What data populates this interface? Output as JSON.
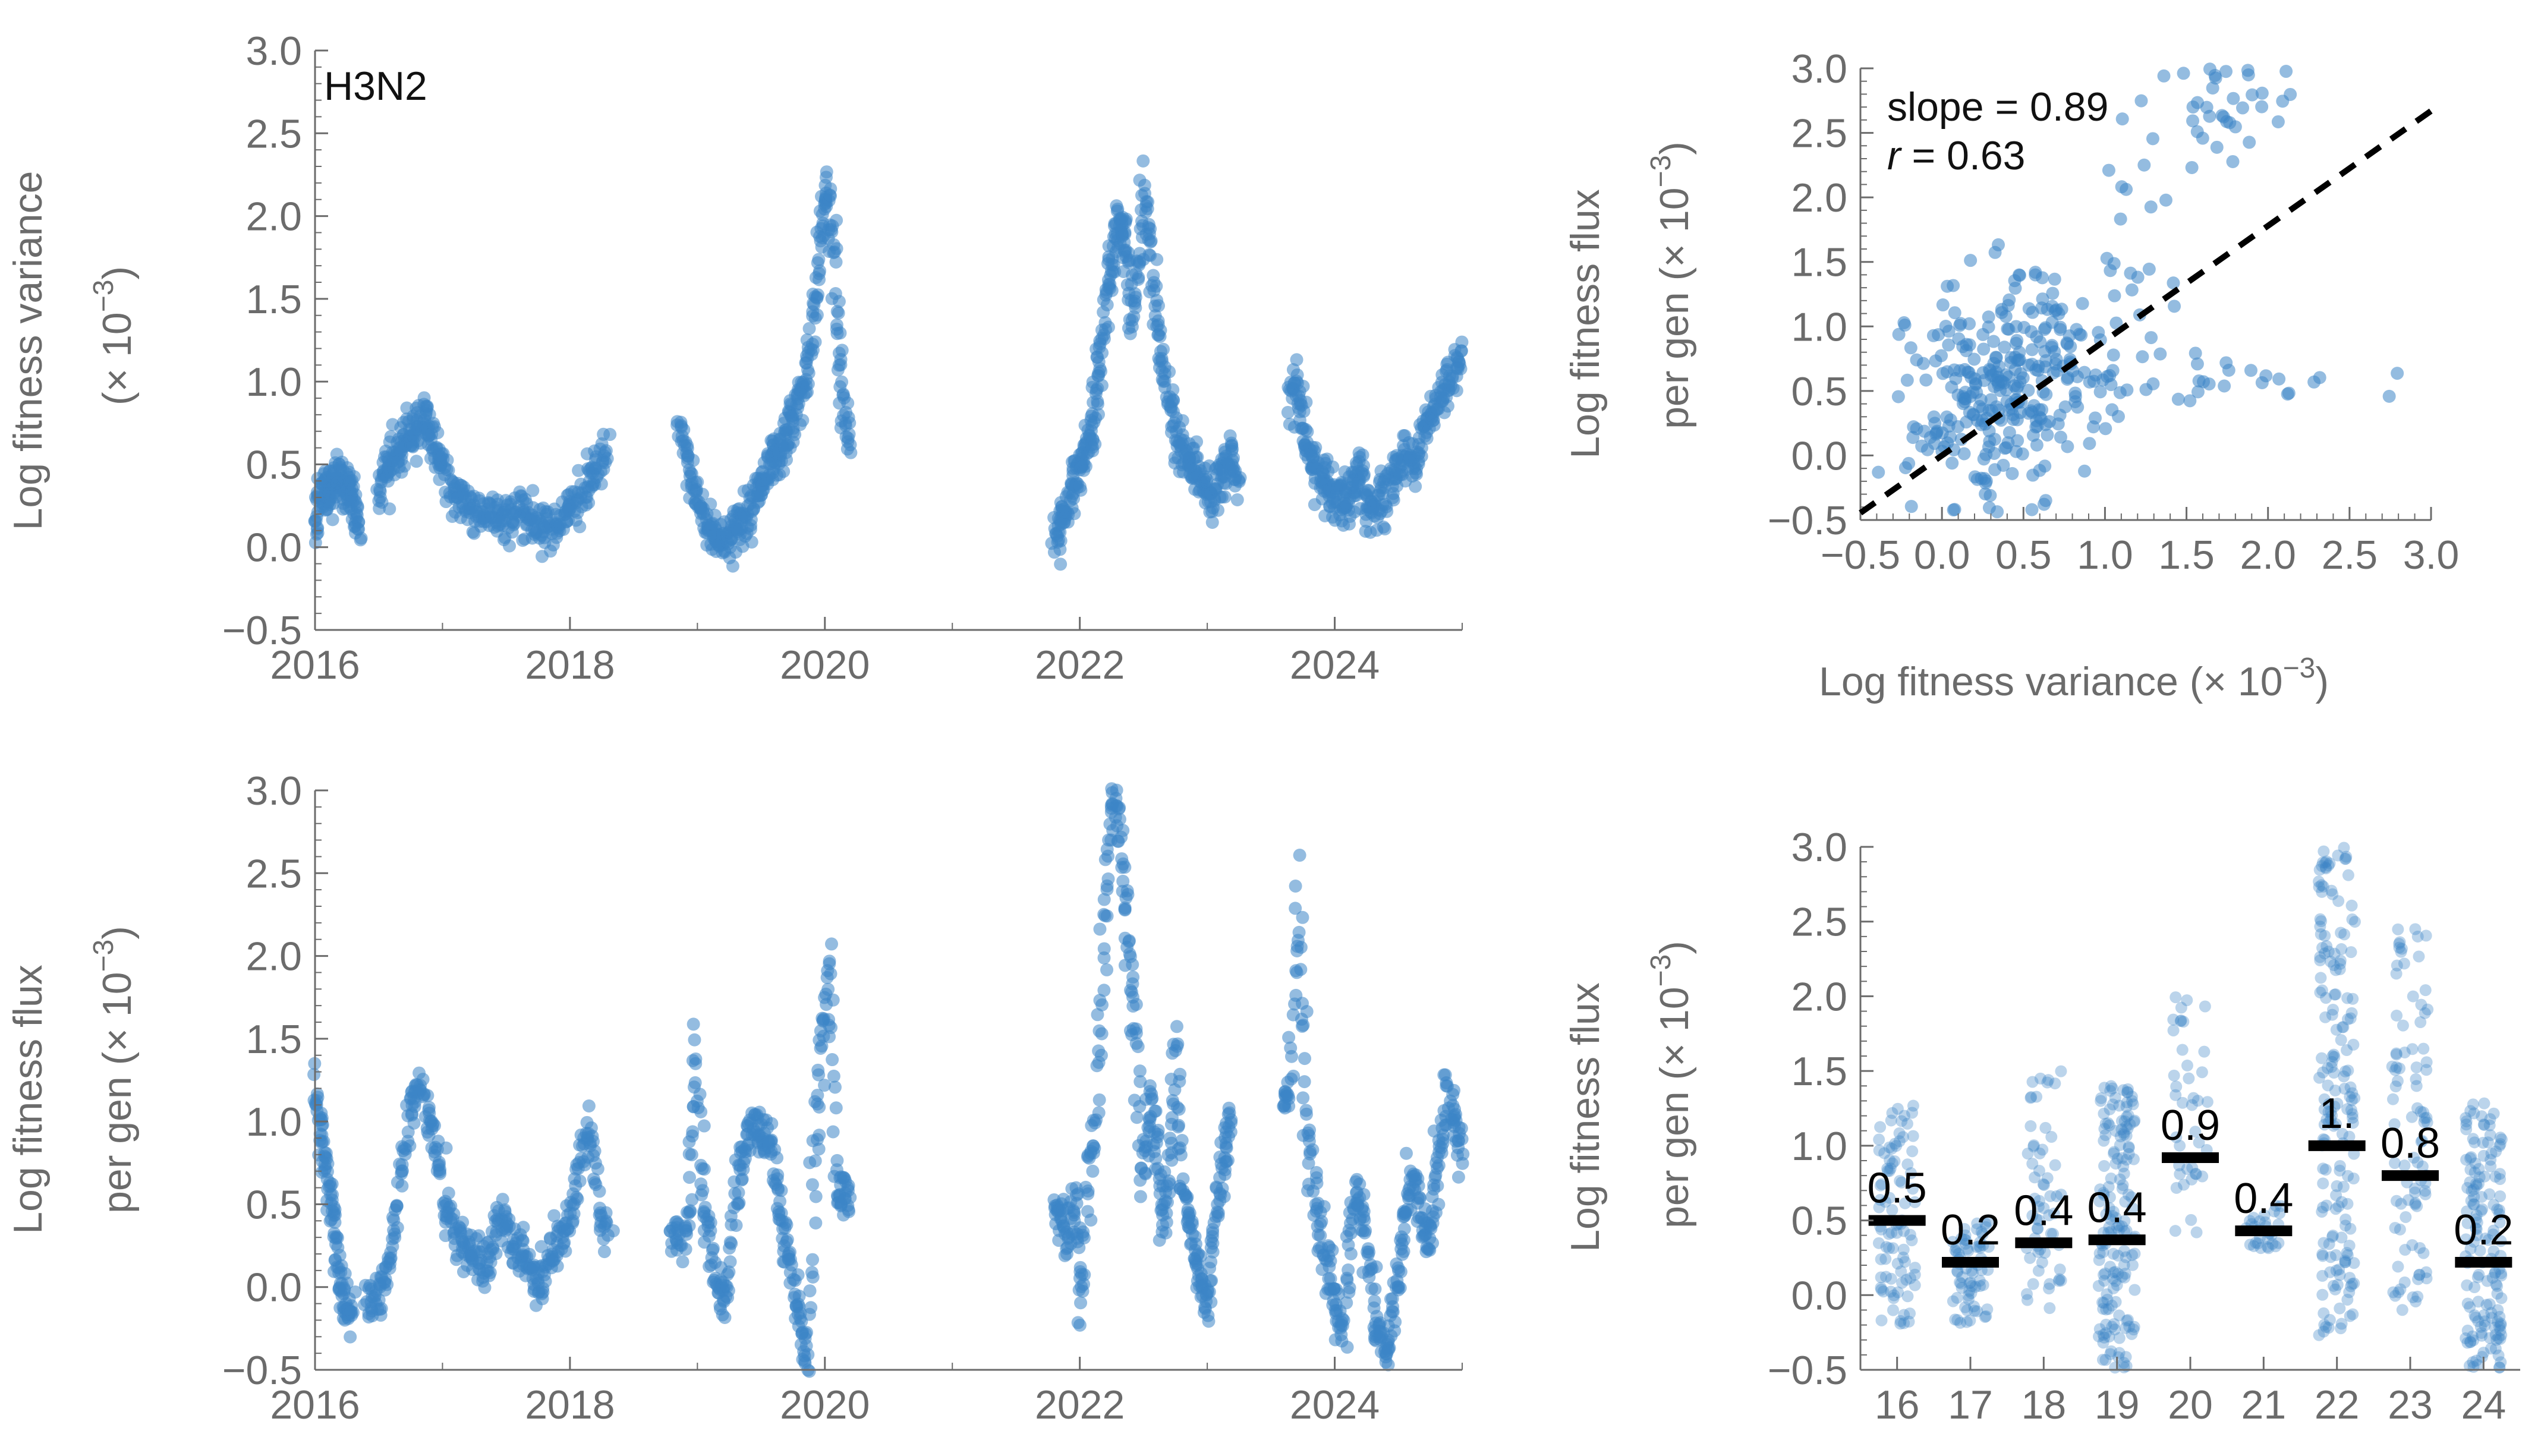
{
  "chart_data": [
    {
      "id": "variance-timeseries",
      "type": "scatter",
      "annotation": "H3N2",
      "ylabel_line1": "Log fitness variance",
      "ylabel_line2": "(× 10",
      "ylabel_sup": "−3",
      "ylabel_close": ")",
      "xlim": [
        2016,
        2025
      ],
      "ylim": [
        -0.5,
        3.0
      ],
      "x_ticks": [
        "2016",
        "2018",
        "2020",
        "2022",
        "2024"
      ],
      "y_ticks": [
        "−0.5",
        "0.0",
        "0.5",
        "1.0",
        "1.5",
        "2.0",
        "2.5",
        "3.0"
      ],
      "segments": [
        {
          "x0": 2016.0,
          "x1": 2016.35,
          "v": [
            0.1,
            0.3,
            0.38,
            0.35,
            0.3,
            0.4,
            0.42,
            0.38,
            0.35,
            0.32,
            0.2,
            0.1
          ]
        },
        {
          "x0": 2016.5,
          "x1": 2017.0,
          "v": [
            0.35,
            0.45,
            0.5,
            0.55,
            0.6,
            0.65,
            0.7,
            0.75,
            0.8,
            0.7,
            0.55,
            0.5
          ]
        },
        {
          "x0": 2017.0,
          "x1": 2018.3,
          "v": [
            0.45,
            0.35,
            0.3,
            0.25,
            0.22,
            0.2,
            0.18,
            0.15,
            0.2,
            0.25,
            0.18,
            0.15,
            0.12,
            0.15,
            0.2,
            0.25,
            0.3,
            0.4,
            0.5,
            0.55
          ]
        },
        {
          "x0": 2018.85,
          "x1": 2019.45,
          "v": [
            0.75,
            0.55,
            0.4,
            0.25,
            0.15,
            0.1,
            0.05,
            0.05,
            0.1,
            0.15,
            0.2,
            0.25
          ]
        },
        {
          "x0": 2019.45,
          "x1": 2020.2,
          "v": [
            0.3,
            0.35,
            0.4,
            0.5,
            0.55,
            0.6,
            0.7,
            0.8,
            0.9,
            1.0,
            1.3,
            1.6,
            2.0,
            2.2,
            1.8,
            1.2,
            0.8,
            0.6
          ]
        },
        {
          "x0": 2021.8,
          "x1": 2022.4,
          "v": [
            0.0,
            0.1,
            0.2,
            0.3,
            0.4,
            0.5,
            0.6,
            0.7,
            0.9,
            1.1,
            1.4,
            1.7,
            1.9,
            2.0,
            1.8,
            1.5
          ]
        },
        {
          "x0": 2022.4,
          "x1": 2023.25,
          "v": [
            1.3,
            1.6,
            2.2,
            1.8,
            1.4,
            1.1,
            0.9,
            0.7,
            0.6,
            0.5,
            0.45,
            0.4,
            0.35,
            0.3,
            0.4,
            0.5,
            0.55,
            0.35
          ]
        },
        {
          "x0": 2023.65,
          "x1": 2024.25,
          "v": [
            0.9,
            1.0,
            0.8,
            0.6,
            0.5,
            0.4,
            0.35,
            0.3,
            0.28,
            0.25,
            0.3,
            0.35,
            0.5,
            0.25
          ]
        },
        {
          "x0": 2024.25,
          "x1": 2025.0,
          "v": [
            0.2,
            0.25,
            0.3,
            0.35,
            0.45,
            0.55,
            0.5,
            0.6,
            0.7,
            0.8,
            0.9,
            1.0,
            1.1,
            1.2
          ]
        }
      ]
    },
    {
      "id": "flux-vs-variance",
      "type": "scatter",
      "ylabel_line1": "Log fitness flux",
      "ylabel_line2": "per gen (× 10",
      "ylabel_sup": "−3",
      "ylabel_close": ")",
      "xlabel": "Log fitness variance (× 10",
      "xlabel_sup": "−3",
      "xlabel_close": ")",
      "xlim": [
        -0.5,
        3.0
      ],
      "ylim": [
        -0.5,
        3.0
      ],
      "x_ticks": [
        "−0.5",
        "0.0",
        "0.5",
        "1.0",
        "1.5",
        "2.0",
        "2.5",
        "3.0"
      ],
      "y_ticks": [
        "−0.5",
        "0.0",
        "0.5",
        "1.0",
        "1.5",
        "2.0",
        "2.5",
        "3.0"
      ],
      "slope_text": "slope = 0.89",
      "r_symbol": "r",
      "r_text": " = 0.63",
      "fit": {
        "slope": 0.89,
        "intercept": 0.0
      },
      "clusters": [
        {
          "cx": 0.3,
          "cy": 0.4,
          "sx": 0.25,
          "sy": 0.45,
          "n": 260
        },
        {
          "cx": 0.8,
          "cy": 0.9,
          "sx": 0.25,
          "sy": 0.3,
          "n": 60
        },
        {
          "cx": 1.6,
          "cy": 0.6,
          "sx": 0.5,
          "sy": 0.1,
          "n": 30
        },
        {
          "cx": 1.8,
          "cy": 2.7,
          "sx": 0.2,
          "sy": 0.2,
          "n": 35
        },
        {
          "cx": 1.2,
          "cy": 1.9,
          "sx": 0.15,
          "sy": 0.6,
          "n": 20
        }
      ]
    },
    {
      "id": "flux-timeseries",
      "type": "scatter",
      "ylabel_line1": "Log fitness flux",
      "ylabel_line2": "per gen (× 10",
      "ylabel_sup": "−3",
      "ylabel_close": ")",
      "xlim": [
        2016,
        2025
      ],
      "ylim": [
        -0.5,
        3.0
      ],
      "x_ticks": [
        "2016",
        "2018",
        "2020",
        "2022",
        "2024"
      ],
      "y_ticks": [
        "−0.5",
        "0.0",
        "0.5",
        "1.0",
        "1.5",
        "2.0",
        "2.5",
        "3.0"
      ],
      "segments": [
        {
          "x0": 2016.0,
          "x1": 2016.3,
          "v": [
            1.2,
            1.0,
            0.8,
            0.6,
            0.4,
            0.1,
            -0.1,
            -0.15,
            -0.1
          ]
        },
        {
          "x0": 2016.4,
          "x1": 2017.0,
          "v": [
            -0.1,
            -0.1,
            0.0,
            0.2,
            0.6,
            1.0,
            1.2,
            1.1,
            0.9,
            0.7
          ]
        },
        {
          "x0": 2017.0,
          "x1": 2018.3,
          "v": [
            0.5,
            0.4,
            0.3,
            0.2,
            0.15,
            0.1,
            0.3,
            0.4,
            0.3,
            0.2,
            0.1,
            0.0,
            0.1,
            0.2,
            0.3,
            0.5,
            0.8,
            1.0,
            0.4,
            0.3
          ]
        },
        {
          "x0": 2018.8,
          "x1": 2019.6,
          "v": [
            0.3,
            0.25,
            0.4,
            1.5,
            0.5,
            0.2,
            0.0,
            -0.1,
            0.5,
            0.8,
            1.0,
            0.95,
            0.9,
            0.85
          ]
        },
        {
          "x0": 2019.6,
          "x1": 2020.2,
          "v": [
            0.7,
            0.5,
            0.2,
            0.0,
            -0.3,
            -0.5,
            0.8,
            1.5,
            2.0,
            0.6,
            0.55,
            0.5
          ]
        },
        {
          "x0": 2021.8,
          "x1": 2022.5,
          "v": [
            0.5,
            0.4,
            0.3,
            0.6,
            -0.2,
            0.7,
            1.0,
            2.0,
            2.8,
            3.0,
            2.5,
            2.0,
            1.5,
            0.6
          ]
        },
        {
          "x0": 2022.5,
          "x1": 2023.2,
          "v": [
            0.7,
            1.2,
            0.8,
            0.4,
            0.7,
            1.5,
            0.6,
            0.4,
            0.2,
            0.0,
            -0.1,
            0.3,
            0.6,
            0.9,
            1.0
          ]
        },
        {
          "x0": 2023.6,
          "x1": 2024.3,
          "v": [
            1.1,
            1.2,
            2.4,
            1.0,
            0.6,
            0.3,
            0.1,
            -0.1,
            -0.3,
            0.4,
            0.6,
            0.3,
            0.0
          ]
        },
        {
          "x0": 2024.3,
          "x1": 2025.0,
          "v": [
            -0.2,
            -0.3,
            -0.4,
            -0.1,
            0.2,
            0.5,
            0.7,
            0.4,
            0.2,
            0.6,
            0.9,
            1.2,
            1.0,
            0.8
          ]
        }
      ]
    },
    {
      "id": "flux-by-year",
      "type": "scatter",
      "ylabel_line1": "Log fitness flux",
      "ylabel_line2": "per gen (× 10",
      "ylabel_sup": "−3",
      "ylabel_close": ")",
      "xlim": [
        15.5,
        24.5
      ],
      "ylim": [
        -0.5,
        3.0
      ],
      "categories": [
        "16",
        "17",
        "18",
        "19",
        "20",
        "21",
        "22",
        "23",
        "24"
      ],
      "y_ticks": [
        "−0.5",
        "0.0",
        "0.5",
        "1.0",
        "1.5",
        "2.0",
        "2.5",
        "3.0"
      ],
      "means": [
        0.5,
        0.22,
        0.35,
        0.37,
        0.92,
        0.43,
        1.0,
        0.8,
        0.22
      ],
      "mean_labels": [
        "0.5",
        "0.2",
        "0.4",
        "0.4",
        "0.9",
        "0.4",
        "1.",
        "0.8",
        "0.2"
      ],
      "spreads": [
        {
          "lo": -0.2,
          "hi": 1.3,
          "n": 90
        },
        {
          "lo": -0.2,
          "hi": 0.5,
          "n": 70
        },
        {
          "lo": -0.1,
          "hi": 1.5,
          "n": 60
        },
        {
          "lo": -0.5,
          "hi": 1.4,
          "n": 160
        },
        {
          "lo": 0.4,
          "hi": 2.0,
          "n": 40
        },
        {
          "lo": 0.3,
          "hi": 0.6,
          "n": 30
        },
        {
          "lo": -0.3,
          "hi": 3.0,
          "n": 180
        },
        {
          "lo": -0.1,
          "hi": 2.5,
          "n": 90
        },
        {
          "lo": -0.5,
          "hi": 1.3,
          "n": 150
        }
      ]
    }
  ]
}
